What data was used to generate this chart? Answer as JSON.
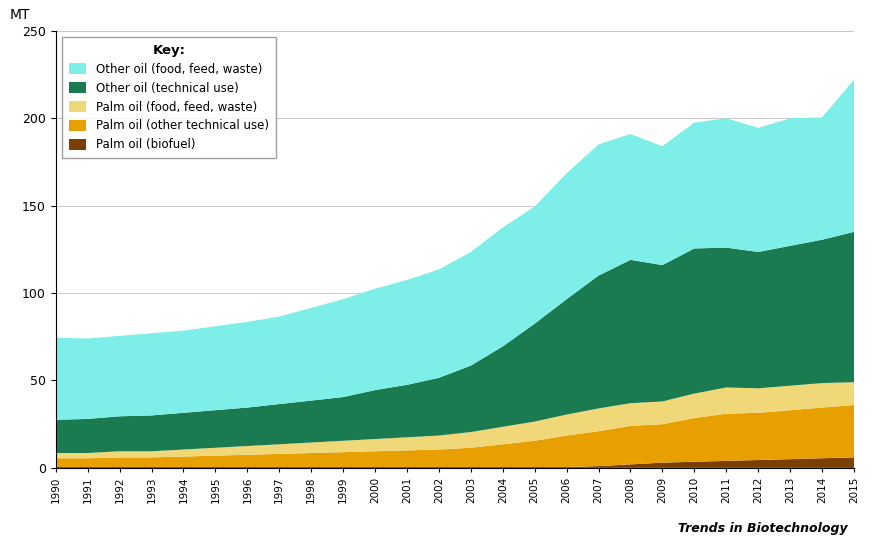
{
  "years": [
    1990,
    1991,
    1992,
    1993,
    1994,
    1995,
    1996,
    1997,
    1998,
    1999,
    2000,
    2001,
    2002,
    2003,
    2004,
    2005,
    2006,
    2007,
    2008,
    2009,
    2010,
    2011,
    2012,
    2013,
    2014,
    2015
  ],
  "palm_biofuel": [
    0.5,
    0.5,
    0.5,
    0.5,
    0.5,
    0.5,
    0.5,
    0.5,
    0.5,
    0.5,
    0.5,
    0.5,
    0.5,
    0.5,
    0.5,
    0.5,
    0.5,
    1.0,
    2.0,
    3.0,
    3.5,
    4.0,
    4.5,
    5.0,
    5.5,
    6.0
  ],
  "palm_technical": [
    5.0,
    5.0,
    5.5,
    5.5,
    6.0,
    6.5,
    7.0,
    7.5,
    8.0,
    8.5,
    9.0,
    9.5,
    10.0,
    11.0,
    13.0,
    15.0,
    18.0,
    20.0,
    22.0,
    22.0,
    25.0,
    27.0,
    27.0,
    28.0,
    29.0,
    30.0
  ],
  "palm_food": [
    3.0,
    3.0,
    3.5,
    3.5,
    4.0,
    4.5,
    5.0,
    5.5,
    6.0,
    6.5,
    7.0,
    7.5,
    8.0,
    9.0,
    10.0,
    11.0,
    12.0,
    13.0,
    13.0,
    13.0,
    14.0,
    15.0,
    14.0,
    14.0,
    14.0,
    13.0
  ],
  "other_technical": [
    19.0,
    19.5,
    20.0,
    20.5,
    21.0,
    21.5,
    22.0,
    23.0,
    24.0,
    25.0,
    28.0,
    30.0,
    33.0,
    38.0,
    46.0,
    56.0,
    66.0,
    76.0,
    82.0,
    78.0,
    83.0,
    80.0,
    78.0,
    80.0,
    82.0,
    86.0
  ],
  "other_food": [
    47.0,
    46.0,
    46.0,
    47.0,
    47.0,
    48.0,
    49.0,
    50.0,
    53.0,
    56.0,
    58.0,
    60.0,
    62.0,
    65.0,
    68.0,
    67.0,
    72.0,
    75.0,
    72.0,
    68.0,
    72.0,
    74.0,
    71.0,
    73.0,
    70.0,
    87.0
  ],
  "colors": {
    "palm_biofuel": "#7B3F00",
    "palm_technical": "#E8A000",
    "palm_food": "#F0D878",
    "other_technical": "#1A7A50",
    "other_food": "#7EEEE8"
  },
  "labels": {
    "other_food": "Other oil (food, feed, waste)",
    "other_technical": "Other oil (technical use)",
    "palm_food": "Palm oil (food, feed, waste)",
    "palm_technical": "Palm oil (other technical use)",
    "palm_biofuel": "Palm oil (biofuel)"
  },
  "ylabel": "MT",
  "ylim": [
    0,
    250
  ],
  "yticks": [
    0,
    50,
    100,
    150,
    200,
    250
  ],
  "watermark": "Trends in Biotechnology",
  "background_color": "#FFFFFF",
  "legend_title": "Key:"
}
